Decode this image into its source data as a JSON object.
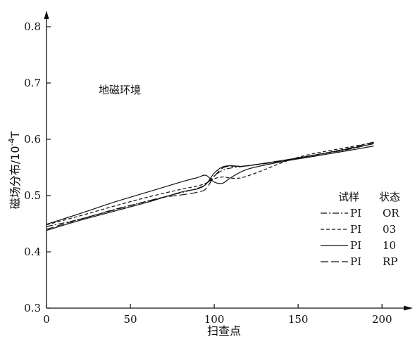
{
  "chart_data": {
    "type": "line",
    "xlabel": "扫查点",
    "ylabel": "磁场分布/10",
    "ylabel_sup": "-4",
    "ylabel_unit": "T",
    "xlim": [
      0,
      210
    ],
    "ylim": [
      0.3,
      0.82
    ],
    "xticks": [
      0,
      50,
      100,
      150,
      200
    ],
    "yticks": [
      0.3,
      0.4,
      0.5,
      0.6,
      0.7,
      0.8
    ],
    "annotation": "地磁环境",
    "legend": {
      "header_sample": "试样",
      "header_state": "状态",
      "placement": "right"
    },
    "series": [
      {
        "sample": "PI",
        "state": "OR",
        "style": "dashdot",
        "x": [
          0,
          20,
          40,
          60,
          80,
          90,
          95,
          100,
          105,
          110,
          120,
          140,
          160,
          180,
          195
        ],
        "y": [
          0.445,
          0.458,
          0.475,
          0.49,
          0.505,
          0.513,
          0.52,
          0.535,
          0.545,
          0.549,
          0.553,
          0.562,
          0.572,
          0.582,
          0.593
        ]
      },
      {
        "sample": "PI",
        "state": "03",
        "style": "dashed",
        "x": [
          0,
          20,
          40,
          60,
          80,
          90,
          95,
          100,
          105,
          110,
          115,
          120,
          130,
          140,
          150,
          160,
          180,
          195
        ],
        "y": [
          0.448,
          0.464,
          0.481,
          0.497,
          0.511,
          0.517,
          0.522,
          0.53,
          0.533,
          0.531,
          0.531,
          0.535,
          0.546,
          0.558,
          0.568,
          0.575,
          0.586,
          0.594
        ]
      },
      {
        "sample": "PI",
        "state": "10",
        "style": "solid",
        "x": [
          0,
          20,
          40,
          60,
          80,
          90,
          95,
          100,
          105,
          110,
          120,
          140,
          160,
          180,
          195
        ],
        "y": [
          0.449,
          0.468,
          0.488,
          0.506,
          0.524,
          0.532,
          0.536,
          0.524,
          0.522,
          0.532,
          0.547,
          0.56,
          0.57,
          0.58,
          0.588
        ]
      },
      {
        "sample": "PI",
        "state": "RP",
        "style": "longdash",
        "x": [
          0,
          20,
          40,
          60,
          70,
          80,
          90,
          95,
          100,
          105,
          110,
          120,
          140,
          160,
          180,
          195
        ],
        "y": [
          0.44,
          0.458,
          0.474,
          0.49,
          0.497,
          0.501,
          0.506,
          0.512,
          0.534,
          0.549,
          0.552,
          0.553,
          0.561,
          0.572,
          0.584,
          0.595
        ]
      },
      {
        "sample": "",
        "state": "",
        "style": "solid",
        "x": [
          0,
          20,
          40,
          60,
          80,
          90,
          95,
          100,
          105,
          110,
          115,
          120,
          140,
          160,
          180,
          195
        ],
        "y": [
          0.438,
          0.456,
          0.472,
          0.488,
          0.506,
          0.512,
          0.52,
          0.54,
          0.551,
          0.553,
          0.552,
          0.553,
          0.562,
          0.572,
          0.583,
          0.592
        ]
      }
    ]
  }
}
